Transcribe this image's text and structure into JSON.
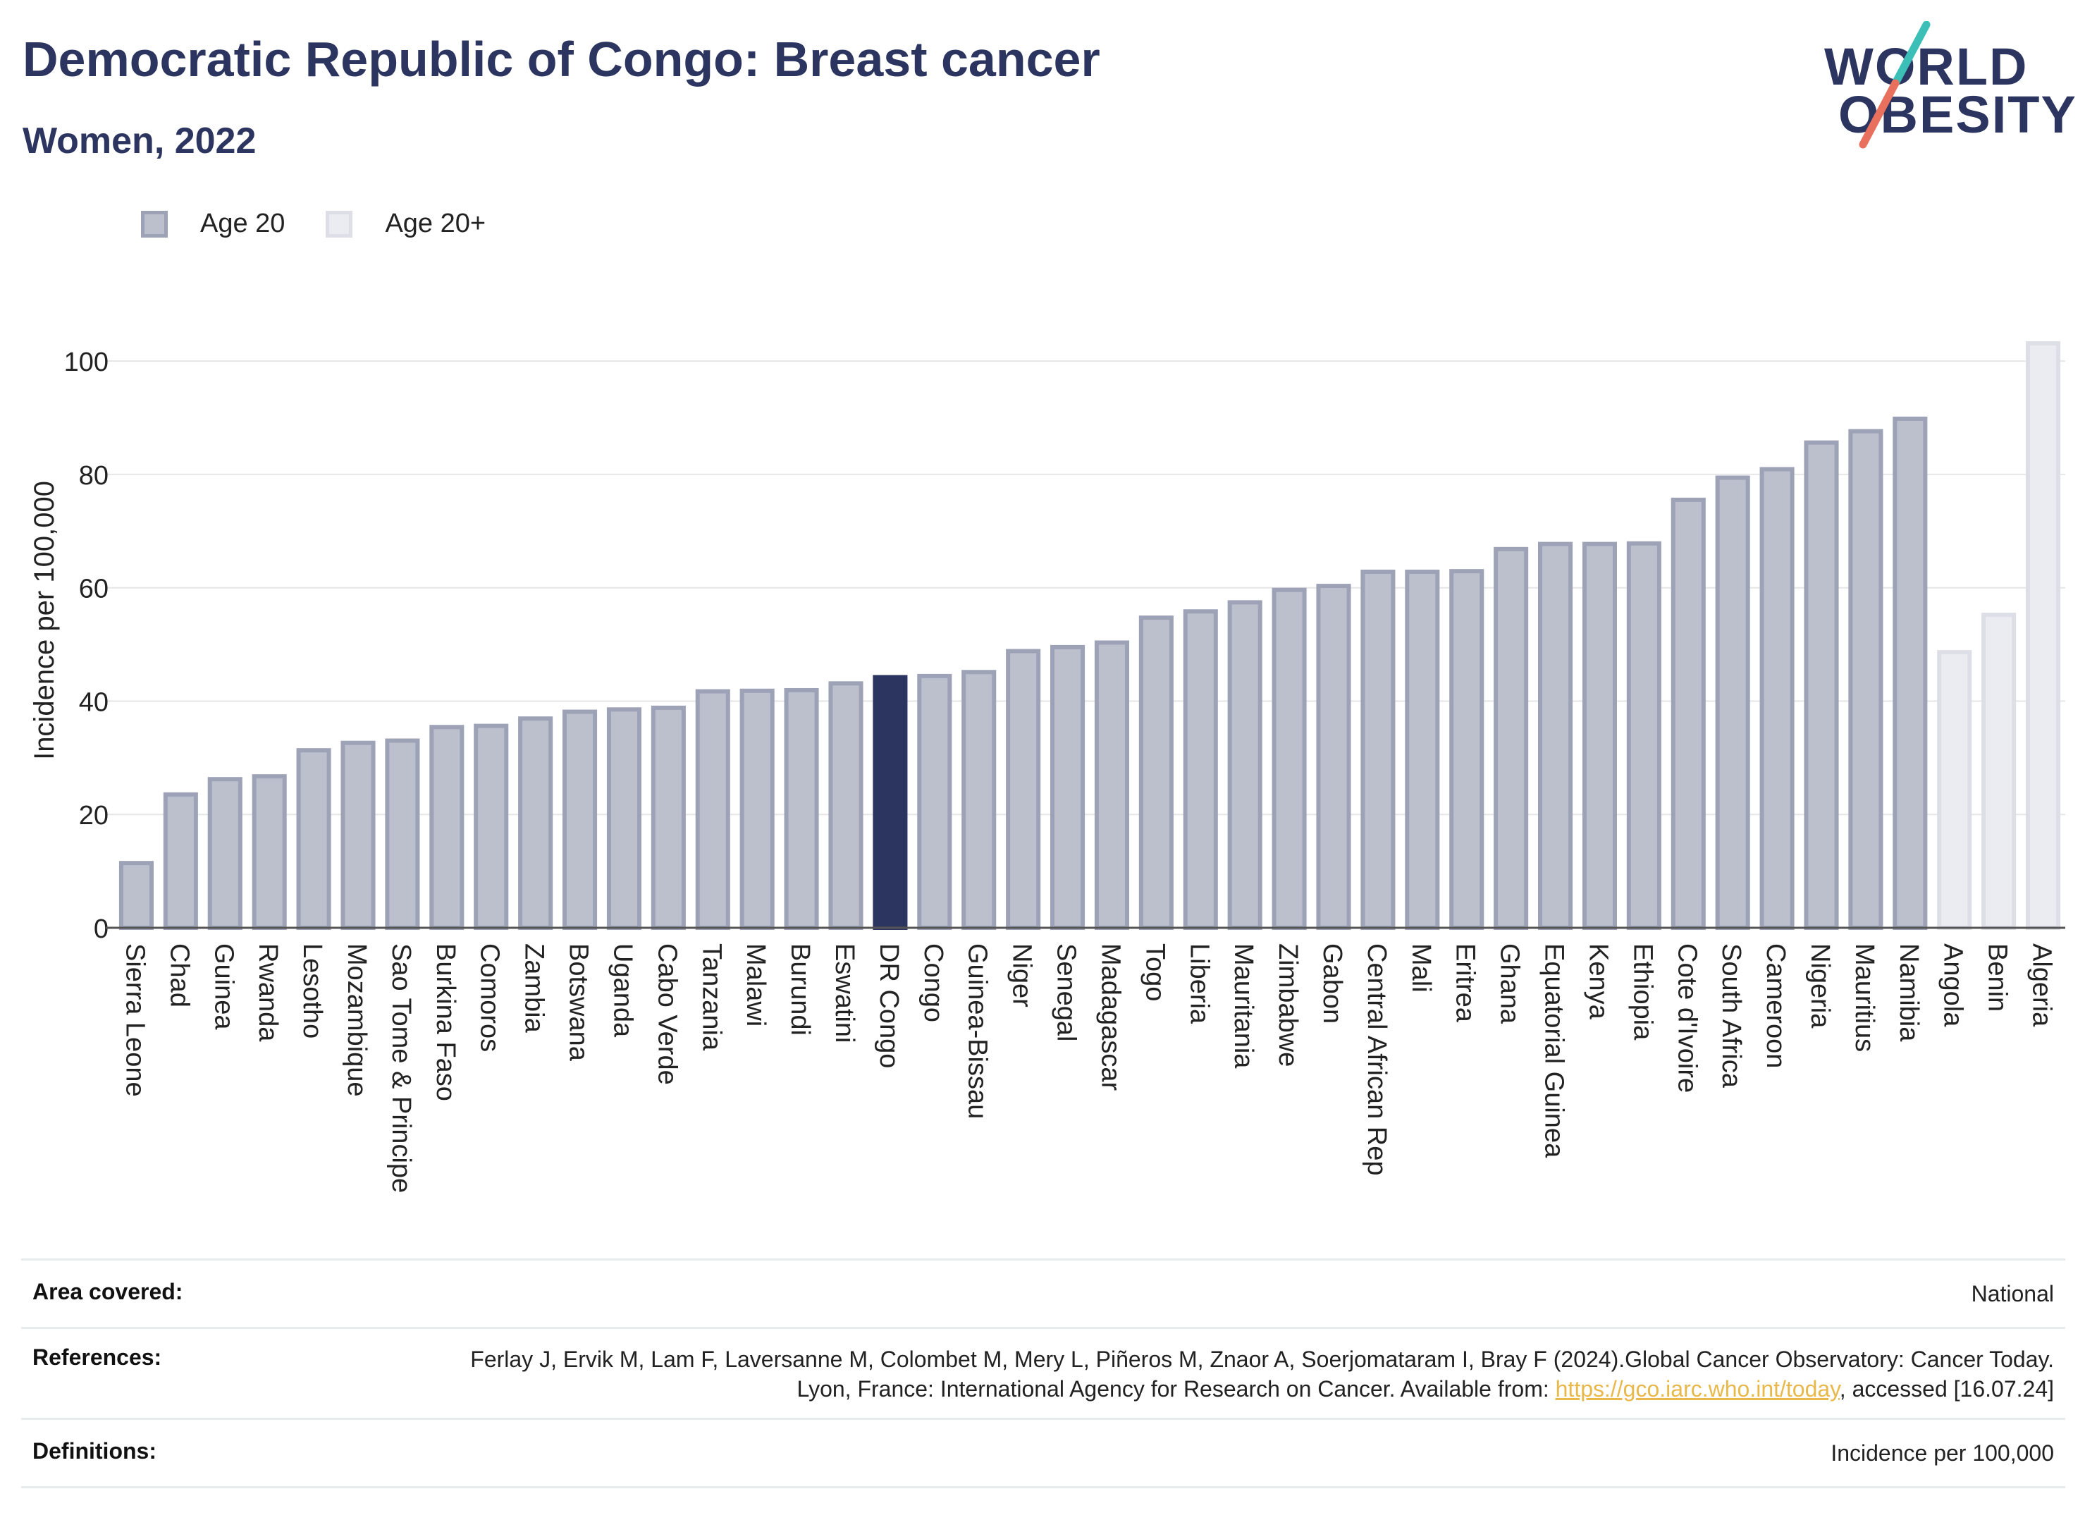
{
  "title": "Democratic Republic of Congo: Breast cancer",
  "subtitle": "Women, 2022",
  "logo": {
    "line1": "WORLD",
    "line2": "OBESITY"
  },
  "legend": [
    {
      "label": "Age 20",
      "fill": "#bcbfcc",
      "stroke": "#9da2b7"
    },
    {
      "label": "Age 20+",
      "fill": "#ebecf1",
      "stroke": "#dedfe6"
    }
  ],
  "colors": {
    "highlight": "#2b3560",
    "age20_fill": "#bcbfcc",
    "age20_stroke": "#9da2b7",
    "age20plus_fill": "#ebecf1",
    "age20plus_stroke": "#dedfe6",
    "grid": "#e6e6e6",
    "logo_teal": "#3bbfb6",
    "logo_coral": "#e8705c"
  },
  "chart_data": {
    "type": "bar",
    "ylabel": "Incidence per 100,000",
    "xlabel": "",
    "ylim": [
      0,
      104
    ],
    "yticks": [
      0,
      20,
      40,
      60,
      80,
      100
    ],
    "grid": true,
    "legend_position": "top-left",
    "highlight": "DR Congo",
    "categories": [
      "Sierra Leone",
      "Chad",
      "Guinea",
      "Rwanda",
      "Lesotho",
      "Mozambique",
      "Sao Tome & Principe",
      "Burkina Faso",
      "Comoros",
      "Zambia",
      "Botswana",
      "Uganda",
      "Cabo Verde",
      "Tanzania",
      "Malawi",
      "Burundi",
      "Eswatini",
      "DR Congo",
      "Congo",
      "Guinea-Bissau",
      "Niger",
      "Senegal",
      "Madagascar",
      "Togo",
      "Liberia",
      "Mauritania",
      "Zimbabwe",
      "Gabon",
      "Central African Rep",
      "Mali",
      "Eritrea",
      "Ghana",
      "Equatorial Guinea",
      "Kenya",
      "Ethiopia",
      "Cote d'Ivoire",
      "South Africa",
      "Cameroon",
      "Nigeria",
      "Mauritius",
      "Namibia",
      "Angola",
      "Benin",
      "Algeria"
    ],
    "values": [
      11.8,
      23.9,
      26.6,
      27.1,
      31.7,
      33.0,
      33.4,
      35.8,
      36.0,
      37.3,
      38.5,
      38.9,
      39.2,
      42.1,
      42.2,
      42.3,
      43.5,
      44.6,
      44.8,
      45.5,
      49.2,
      49.9,
      50.7,
      55.1,
      56.2,
      57.8,
      60.0,
      60.7,
      63.2,
      63.2,
      63.3,
      67.2,
      68.1,
      68.1,
      68.2,
      75.9,
      79.8,
      81.3,
      86.0,
      88.0,
      90.2,
      49.0,
      55.6,
      103.5
    ],
    "groups": [
      "Age 20",
      "Age 20",
      "Age 20",
      "Age 20",
      "Age 20",
      "Age 20",
      "Age 20",
      "Age 20",
      "Age 20",
      "Age 20",
      "Age 20",
      "Age 20",
      "Age 20",
      "Age 20",
      "Age 20",
      "Age 20",
      "Age 20",
      "Age 20",
      "Age 20",
      "Age 20",
      "Age 20",
      "Age 20",
      "Age 20",
      "Age 20",
      "Age 20",
      "Age 20",
      "Age 20",
      "Age 20",
      "Age 20",
      "Age 20",
      "Age 20",
      "Age 20",
      "Age 20",
      "Age 20",
      "Age 20",
      "Age 20",
      "Age 20",
      "Age 20",
      "Age 20",
      "Age 20",
      "Age 20",
      "Age 20+",
      "Age 20+",
      "Age 20+"
    ]
  },
  "footer": {
    "area_key": "Area covered:",
    "area_value": "National",
    "refs_key": "References:",
    "refs_text_1": "Ferlay J, Ervik M, Lam F, Laversanne M, Colombet M, Mery L, Piñeros M, Znaor A, Soerjomataram I, Bray F (2024).Global Cancer Observatory: Cancer Today. Lyon, France: International Agency for Research on Cancer. Available from: ",
    "refs_link": "https://gco.iarc.who.int/today",
    "refs_text_2": ", accessed [16.07.24]",
    "defs_key": "Definitions:",
    "defs_value": "Incidence per 100,000"
  }
}
